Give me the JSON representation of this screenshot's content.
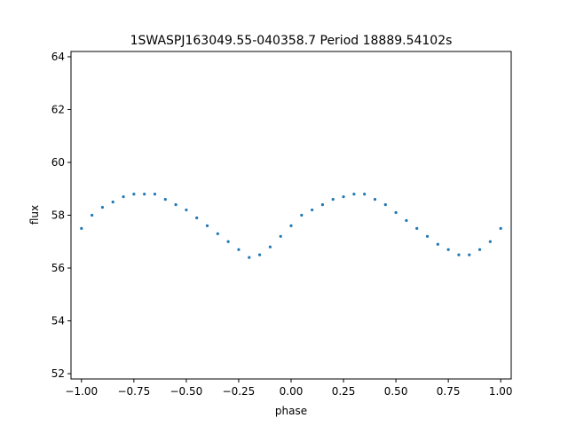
{
  "chart_data": {
    "type": "scatter",
    "title": "1SWASPJ163049.55-040358.7 Period 18889.54102s",
    "xlabel": "phase",
    "ylabel": "flux",
    "xlim": [
      -1.05,
      1.05
    ],
    "ylim": [
      51.8,
      64.2
    ],
    "x_ticks": [
      -1.0,
      -0.75,
      -0.5,
      -0.25,
      0.0,
      0.25,
      0.5,
      0.75,
      1.0
    ],
    "x_tick_labels": [
      "−1.00",
      "−0.75",
      "−0.50",
      "−0.25",
      "0.00",
      "0.25",
      "0.50",
      "0.75",
      "1.00"
    ],
    "y_ticks": [
      52,
      54,
      56,
      58,
      60,
      62,
      64
    ],
    "y_tick_labels": [
      "52",
      "54",
      "56",
      "58",
      "60",
      "62",
      "64"
    ],
    "grid": false,
    "marker_color": "#1f77b4",
    "series": [
      {
        "points": [
          [
            -1.0,
            57.5
          ],
          [
            -0.95,
            58.0
          ],
          [
            -0.9,
            58.3
          ],
          [
            -0.85,
            58.5
          ],
          [
            -0.8,
            58.7
          ],
          [
            -0.75,
            58.8
          ],
          [
            -0.7,
            58.8
          ],
          [
            -0.65,
            58.8
          ],
          [
            -0.6,
            58.6
          ],
          [
            -0.55,
            58.4
          ],
          [
            -0.5,
            58.2
          ],
          [
            -0.45,
            57.9
          ],
          [
            -0.4,
            57.6
          ],
          [
            -0.35,
            57.3
          ],
          [
            -0.3,
            57.0
          ],
          [
            -0.25,
            56.7
          ],
          [
            -0.2,
            56.4
          ],
          [
            -0.15,
            56.5
          ],
          [
            -0.1,
            56.8
          ],
          [
            -0.05,
            57.2
          ],
          [
            0.0,
            57.6
          ],
          [
            0.05,
            58.0
          ],
          [
            0.1,
            58.2
          ],
          [
            0.15,
            58.4
          ],
          [
            0.2,
            58.6
          ],
          [
            0.25,
            58.7
          ],
          [
            0.3,
            58.8
          ],
          [
            0.35,
            58.8
          ],
          [
            0.4,
            58.6
          ],
          [
            0.45,
            58.4
          ],
          [
            0.5,
            58.1
          ],
          [
            0.55,
            57.8
          ],
          [
            0.6,
            57.5
          ],
          [
            0.65,
            57.2
          ],
          [
            0.7,
            56.9
          ],
          [
            0.75,
            56.7
          ],
          [
            0.8,
            56.5
          ],
          [
            0.85,
            56.5
          ],
          [
            0.9,
            56.7
          ],
          [
            0.95,
            57.0
          ],
          [
            1.0,
            57.5
          ]
        ]
      }
    ]
  }
}
